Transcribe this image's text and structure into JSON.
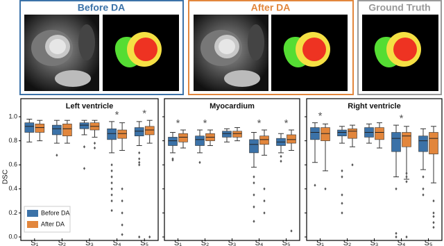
{
  "panels": [
    {
      "title": "Before DA"
    },
    {
      "title": "After DA"
    },
    {
      "title": "Ground Truth"
    }
  ],
  "chart_data": [
    {
      "type": "box",
      "title": "Left ventricle",
      "y_label": "DSC",
      "categories": [
        "S₁",
        "S₂",
        "S₃",
        "S₄",
        "S₅"
      ],
      "ylim": [
        0,
        1.0
      ],
      "yticks": [
        {
          "value": 0,
          "label": "0.0"
        },
        {
          "value": 0.2,
          "label": "0.2"
        },
        {
          "value": 0.4,
          "label": "0.4"
        },
        {
          "value": 0.6,
          "label": "0.6"
        },
        {
          "value": 0.8,
          "label": "0.8"
        },
        {
          "value": 1.0,
          "label": "1.0"
        }
      ],
      "legend": "lower left",
      "marker": "*",
      "significant": [
        false,
        false,
        false,
        true,
        true
      ],
      "series": [
        {
          "name": "Before DA",
          "color": "#3b72a8",
          "whislo": [
            0.79,
            0.78,
            0.85,
            0.7,
            0.76
          ],
          "q1": [
            0.87,
            0.85,
            0.9,
            0.81,
            0.84
          ],
          "median": [
            0.92,
            0.9,
            0.93,
            0.86,
            0.88
          ],
          "q3": [
            0.95,
            0.93,
            0.95,
            0.9,
            0.91
          ],
          "whishi": [
            0.98,
            0.97,
            0.97,
            0.96,
            0.96
          ],
          "fliers": [
            [],
            [
              0.68
            ],
            [
              0.75,
              0.57
            ],
            [
              0.6,
              0.55,
              0.5,
              0.45,
              0.4,
              0.35,
              0.3,
              0.22
            ],
            [
              0.7,
              0.65,
              0.62,
              0.6,
              0.0
            ]
          ]
        },
        {
          "name": "After DA",
          "color": "#e2863c",
          "whislo": [
            0.8,
            0.78,
            0.83,
            0.72,
            0.78
          ],
          "q1": [
            0.87,
            0.84,
            0.89,
            0.82,
            0.85
          ],
          "median": [
            0.91,
            0.9,
            0.92,
            0.86,
            0.89
          ],
          "q3": [
            0.94,
            0.94,
            0.95,
            0.89,
            0.92
          ],
          "whishi": [
            0.97,
            0.97,
            0.97,
            0.95,
            0.97
          ],
          "fliers": [
            [],
            [],
            [
              0.78,
              0.74
            ],
            [
              0.4,
              0.3,
              0.2,
              0.1,
              0.02
            ],
            [
              0.0
            ]
          ]
        }
      ]
    },
    {
      "type": "box",
      "title": "Myocardium",
      "categories": [
        "S₁",
        "S₂",
        "S₃",
        "S₄",
        "S₅"
      ],
      "ylim": [
        0,
        1.0
      ],
      "yticks": [
        0,
        0.2,
        0.4,
        0.6,
        0.8,
        1.0
      ],
      "marker": "*",
      "significant": [
        true,
        true,
        false,
        true,
        true
      ],
      "series": [
        {
          "name": "Before DA",
          "color": "#3b72a8",
          "whislo": [
            0.7,
            0.7,
            0.79,
            0.58,
            0.7
          ],
          "q1": [
            0.76,
            0.76,
            0.83,
            0.7,
            0.76
          ],
          "median": [
            0.8,
            0.81,
            0.86,
            0.77,
            0.79
          ],
          "q3": [
            0.83,
            0.84,
            0.88,
            0.81,
            0.82
          ],
          "whishi": [
            0.87,
            0.89,
            0.9,
            0.87,
            0.86
          ],
          "fliers": [
            [
              0.65,
              0.64
            ],
            [
              0.62
            ],
            [],
            [
              0.5,
              0.45,
              0.35,
              0.25,
              0.13
            ],
            [
              0.67,
              0.63
            ]
          ]
        },
        {
          "name": "After DA",
          "color": "#e2863c",
          "whislo": [
            0.74,
            0.76,
            0.8,
            0.68,
            0.72
          ],
          "q1": [
            0.79,
            0.8,
            0.83,
            0.77,
            0.78
          ],
          "median": [
            0.83,
            0.83,
            0.86,
            0.81,
            0.81
          ],
          "q3": [
            0.86,
            0.86,
            0.88,
            0.84,
            0.85
          ],
          "whishi": [
            0.89,
            0.89,
            0.91,
            0.89,
            0.89
          ],
          "fliers": [
            [],
            [],
            [],
            [
              0.4,
              0.3,
              0.2
            ],
            [
              0.05
            ]
          ]
        }
      ]
    },
    {
      "type": "box",
      "title": "Right ventricle",
      "categories": [
        "S₁",
        "S₂",
        "S₃",
        "S₄",
        "S₅"
      ],
      "ylim": [
        0,
        1.0
      ],
      "yticks": [
        0,
        0.2,
        0.4,
        0.6,
        0.8,
        1.0
      ],
      "marker": "*",
      "significant": [
        true,
        false,
        false,
        true,
        false
      ],
      "series": [
        {
          "name": "Before DA",
          "color": "#3b72a8",
          "whislo": [
            0.62,
            0.78,
            0.78,
            0.5,
            0.56
          ],
          "q1": [
            0.81,
            0.84,
            0.83,
            0.71,
            0.71
          ],
          "median": [
            0.87,
            0.87,
            0.87,
            0.82,
            0.8
          ],
          "q3": [
            0.91,
            0.89,
            0.91,
            0.87,
            0.84
          ],
          "whishi": [
            0.95,
            0.92,
            0.94,
            0.93,
            0.9
          ],
          "fliers": [
            [
              0.43
            ],
            [
              0.55,
              0.5,
              0.35,
              0.28,
              0.2
            ],
            [],
            [
              0.4,
              0.03,
              0.0
            ],
            [
              0.5,
              0.4,
              0.35
            ]
          ]
        },
        {
          "name": "After DA",
          "color": "#e2863c",
          "whislo": [
            0.55,
            0.75,
            0.74,
            0.48,
            0.45
          ],
          "q1": [
            0.8,
            0.82,
            0.81,
            0.75,
            0.69
          ],
          "median": [
            0.86,
            0.88,
            0.87,
            0.84,
            0.82
          ],
          "q3": [
            0.91,
            0.9,
            0.91,
            0.87,
            0.87
          ],
          "whishi": [
            0.94,
            0.93,
            0.95,
            0.92,
            0.92
          ],
          "fliers": [
            [
              0.4
            ],
            [
              0.6
            ],
            [],
            [
              0.53,
              0.5,
              0.46,
              0.0
            ],
            [
              0.3,
              0.2,
              0.17,
              0.12,
              0.08
            ]
          ]
        }
      ]
    }
  ]
}
